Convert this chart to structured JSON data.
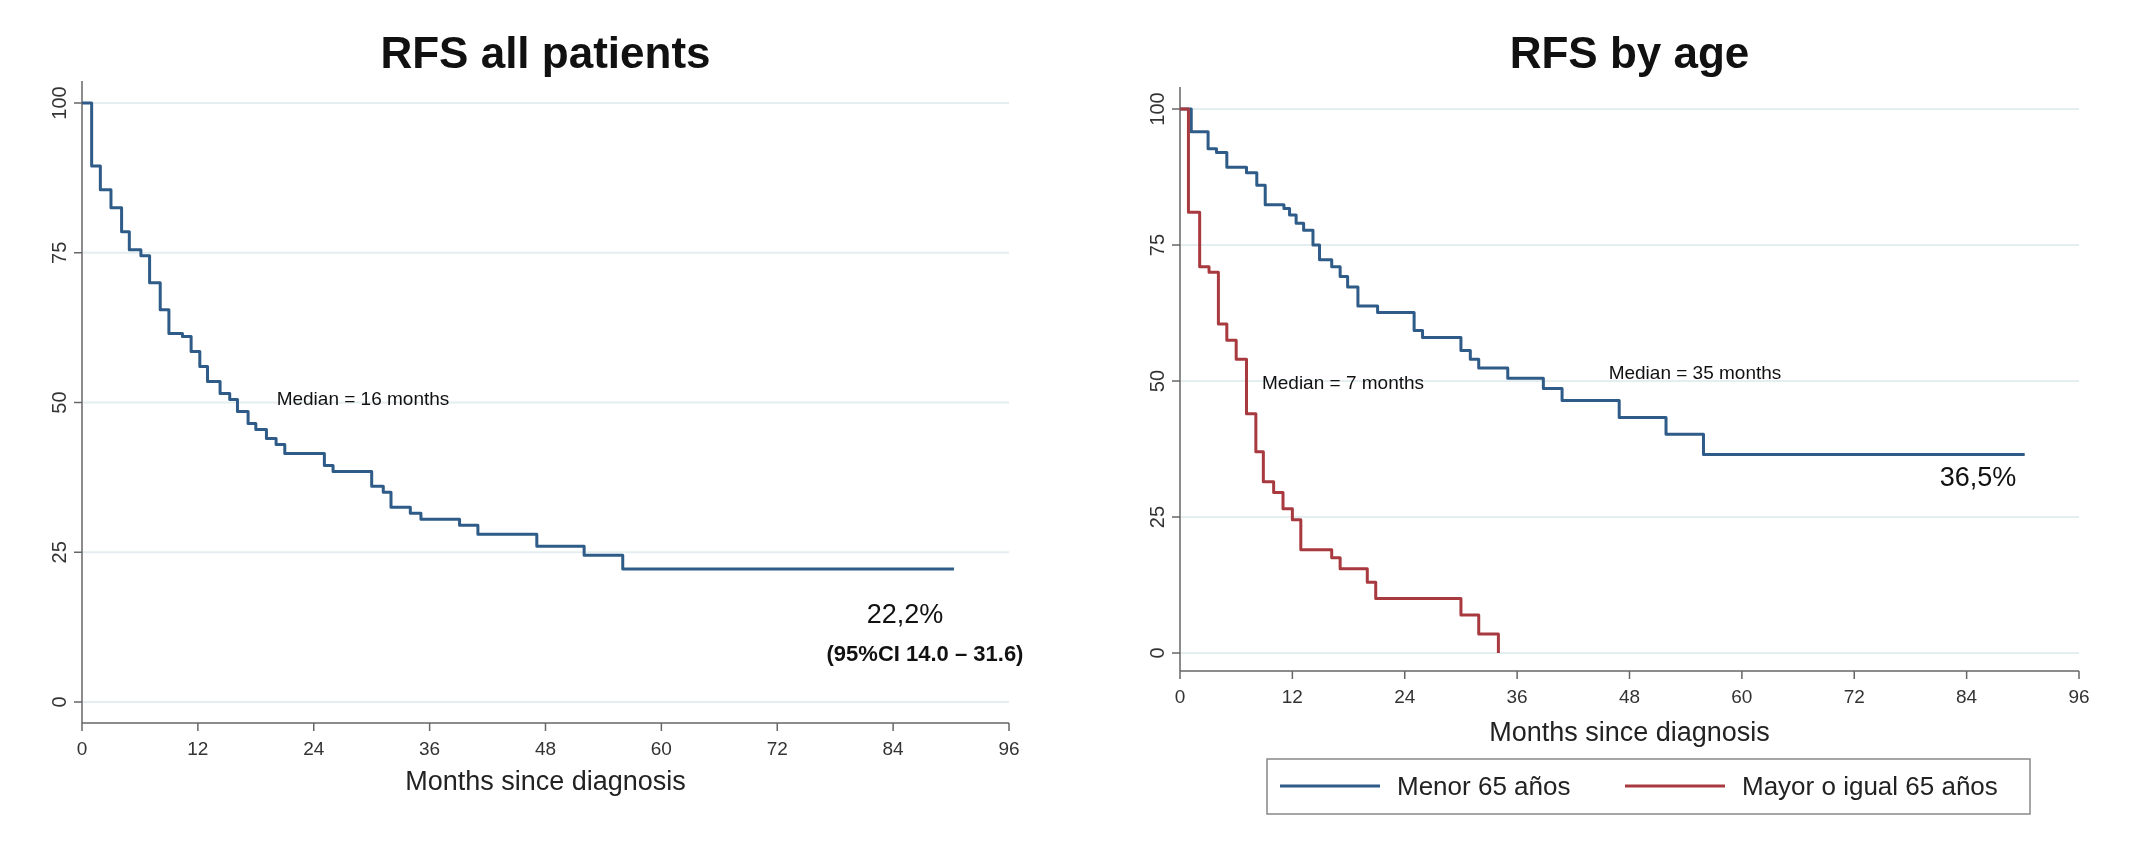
{
  "chart_data": [
    {
      "type": "step",
      "title": "RFS all patients",
      "xlabel": "Months since diagnosis",
      "xlim": [
        0,
        96
      ],
      "xticks": [
        0,
        12,
        24,
        36,
        48,
        60,
        72,
        84,
        96
      ],
      "ylim": [
        0,
        100
      ],
      "yticks": [
        0,
        25,
        50,
        75,
        100
      ],
      "grid": "y",
      "line_style": "solid",
      "series": [
        {
          "color": "#2e5b87",
          "x": [
            0,
            1.0,
            1.9,
            3.0,
            4.1,
            4.9,
            6.1,
            7.0,
            8.1,
            9.0,
            10.4,
            11.3,
            12.2,
            13.0,
            14.3,
            15.3,
            16.1,
            17.2,
            18.0,
            19.1,
            20.1,
            21.0,
            25.1,
            26.0,
            30.0,
            31.2,
            32.0,
            34.0,
            35.1,
            39.1,
            41.0,
            47.1,
            52.0,
            56.0,
            90.3
          ],
          "values": [
            100,
            89.5,
            85.5,
            82.5,
            78.5,
            75.5,
            74.5,
            70,
            65.5,
            61.5,
            61,
            58.5,
            56,
            53.5,
            51.5,
            50.5,
            48.5,
            46.5,
            45.5,
            44,
            43,
            41.5,
            39.5,
            38.5,
            36,
            35,
            32.5,
            31.5,
            30.5,
            29.5,
            28,
            26,
            24.5,
            22.2,
            22.2
          ]
        }
      ],
      "annotations": [
        "Median = 16 months",
        "22,2%",
        "(95%CI 14.0 – 31.6)"
      ]
    },
    {
      "type": "step",
      "title": "RFS by age",
      "xlabel": "Months since diagnosis",
      "xlim": [
        0,
        96
      ],
      "xticks": [
        0,
        12,
        24,
        36,
        48,
        60,
        72,
        84,
        96
      ],
      "ylim": [
        0,
        100
      ],
      "yticks": [
        0,
        25,
        50,
        75,
        100
      ],
      "grid": "y",
      "legend": "bottom",
      "line_style": "solid",
      "series": [
        {
          "name": "Menor 65 años",
          "color": "#2e5b87",
          "x": [
            0,
            1.2,
            3.0,
            3.9,
            5.0,
            7.1,
            8.2,
            9.1,
            11.1,
            11.7,
            12.4,
            13.2,
            14.2,
            14.9,
            16.2,
            17.1,
            17.9,
            19.0,
            21.1,
            25.0,
            25.9,
            30.0,
            31.0,
            31.9,
            35.0,
            38.8,
            40.8,
            46.9,
            51.9,
            55.9,
            90.2
          ],
          "values": [
            100,
            95.8,
            92.7,
            92,
            89.3,
            88.3,
            86,
            82.4,
            81.7,
            80.5,
            79,
            77.7,
            75,
            72.3,
            71,
            69.2,
            67.3,
            63.8,
            62.6,
            59.3,
            58,
            55.6,
            54,
            52.4,
            50.5,
            48.6,
            46.4,
            43.3,
            40.2,
            36.5,
            36.5
          ]
        },
        {
          "name": "Mayor o igual 65 años",
          "color": "#a83a3f",
          "x": [
            0,
            0.9,
            2.1,
            3.1,
            4.1,
            5.0,
            6.0,
            7.1,
            8.1,
            8.9,
            10.0,
            11.0,
            12.0,
            12.9,
            16.2,
            17.1,
            20.0,
            20.9,
            30.0,
            31.9,
            34.0
          ],
          "values": [
            100,
            81,
            71,
            70,
            60.5,
            57.5,
            54,
            44,
            37,
            31.5,
            29.5,
            26.5,
            24.5,
            19,
            17.5,
            15.5,
            13,
            10,
            7,
            3.5,
            0
          ]
        }
      ],
      "annotations": [
        "Median = 7 months",
        "Median = 35 months",
        "36,5%"
      ]
    }
  ]
}
